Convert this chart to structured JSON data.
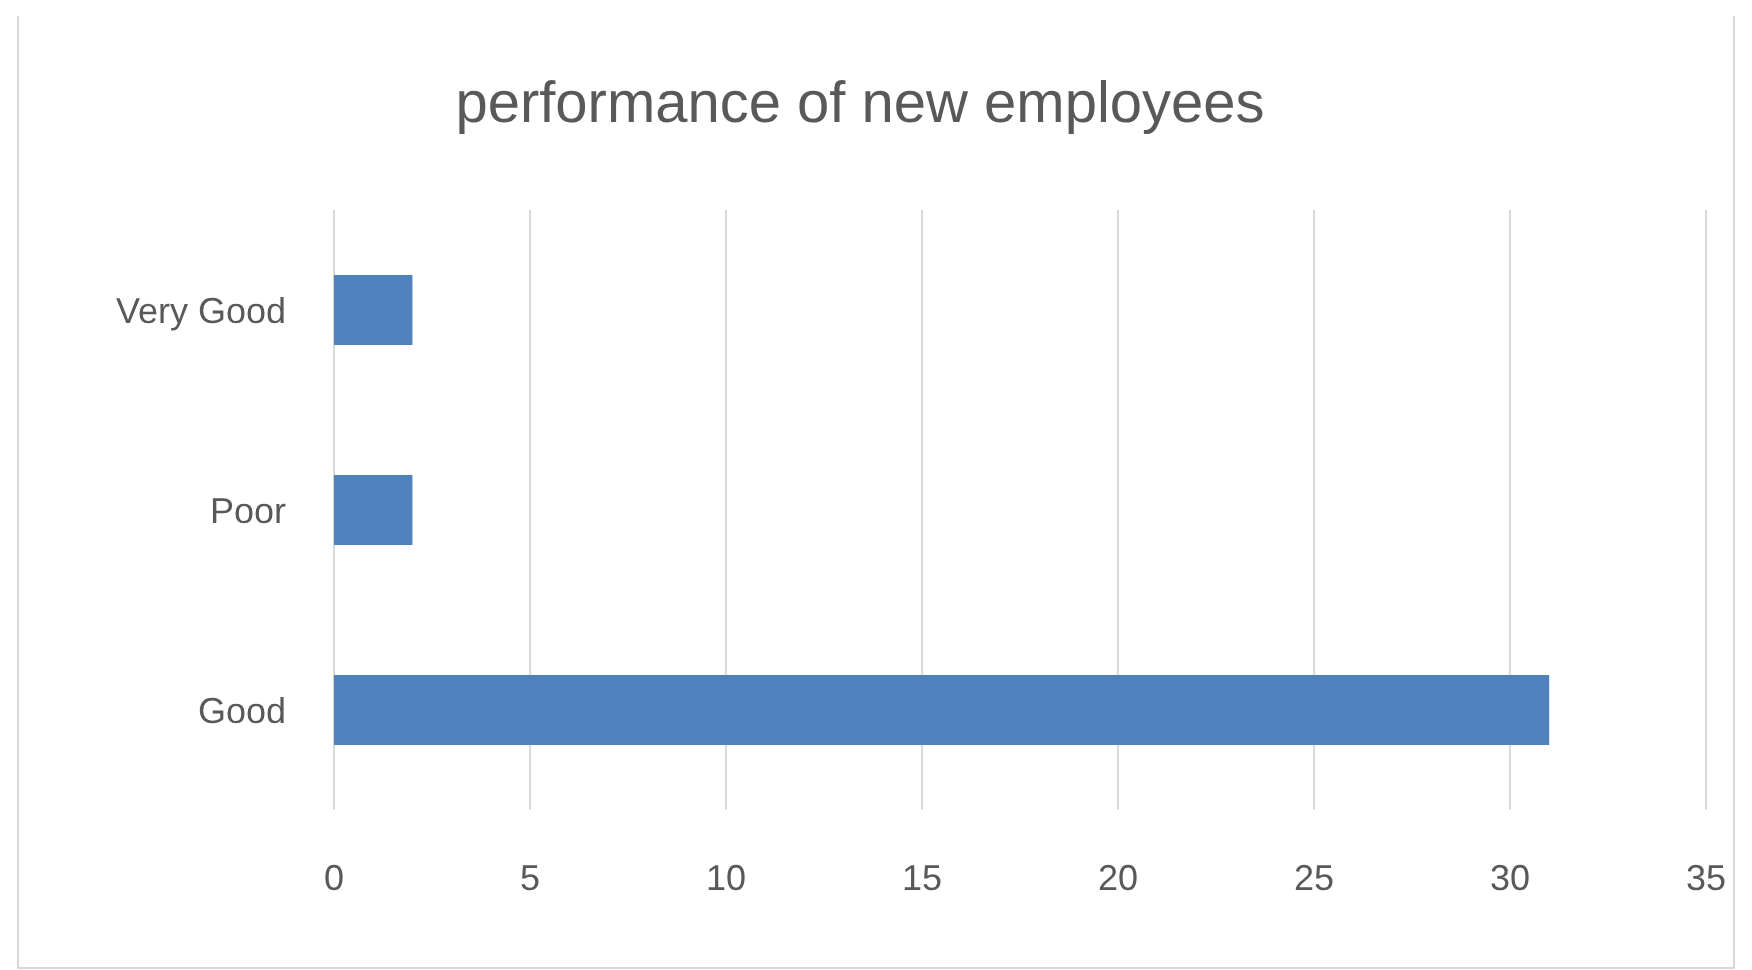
{
  "chart_data": {
    "type": "bar",
    "title": "performance of new employees",
    "orientation": "horizontal",
    "categories": [
      "Very Good",
      "Poor",
      "Good"
    ],
    "values": [
      2,
      2,
      31
    ],
    "color": "#4f81bd",
    "xlim": [
      0,
      35
    ],
    "xticks": [
      0,
      5,
      10,
      15,
      20,
      25,
      30,
      35
    ],
    "grid": "x"
  }
}
